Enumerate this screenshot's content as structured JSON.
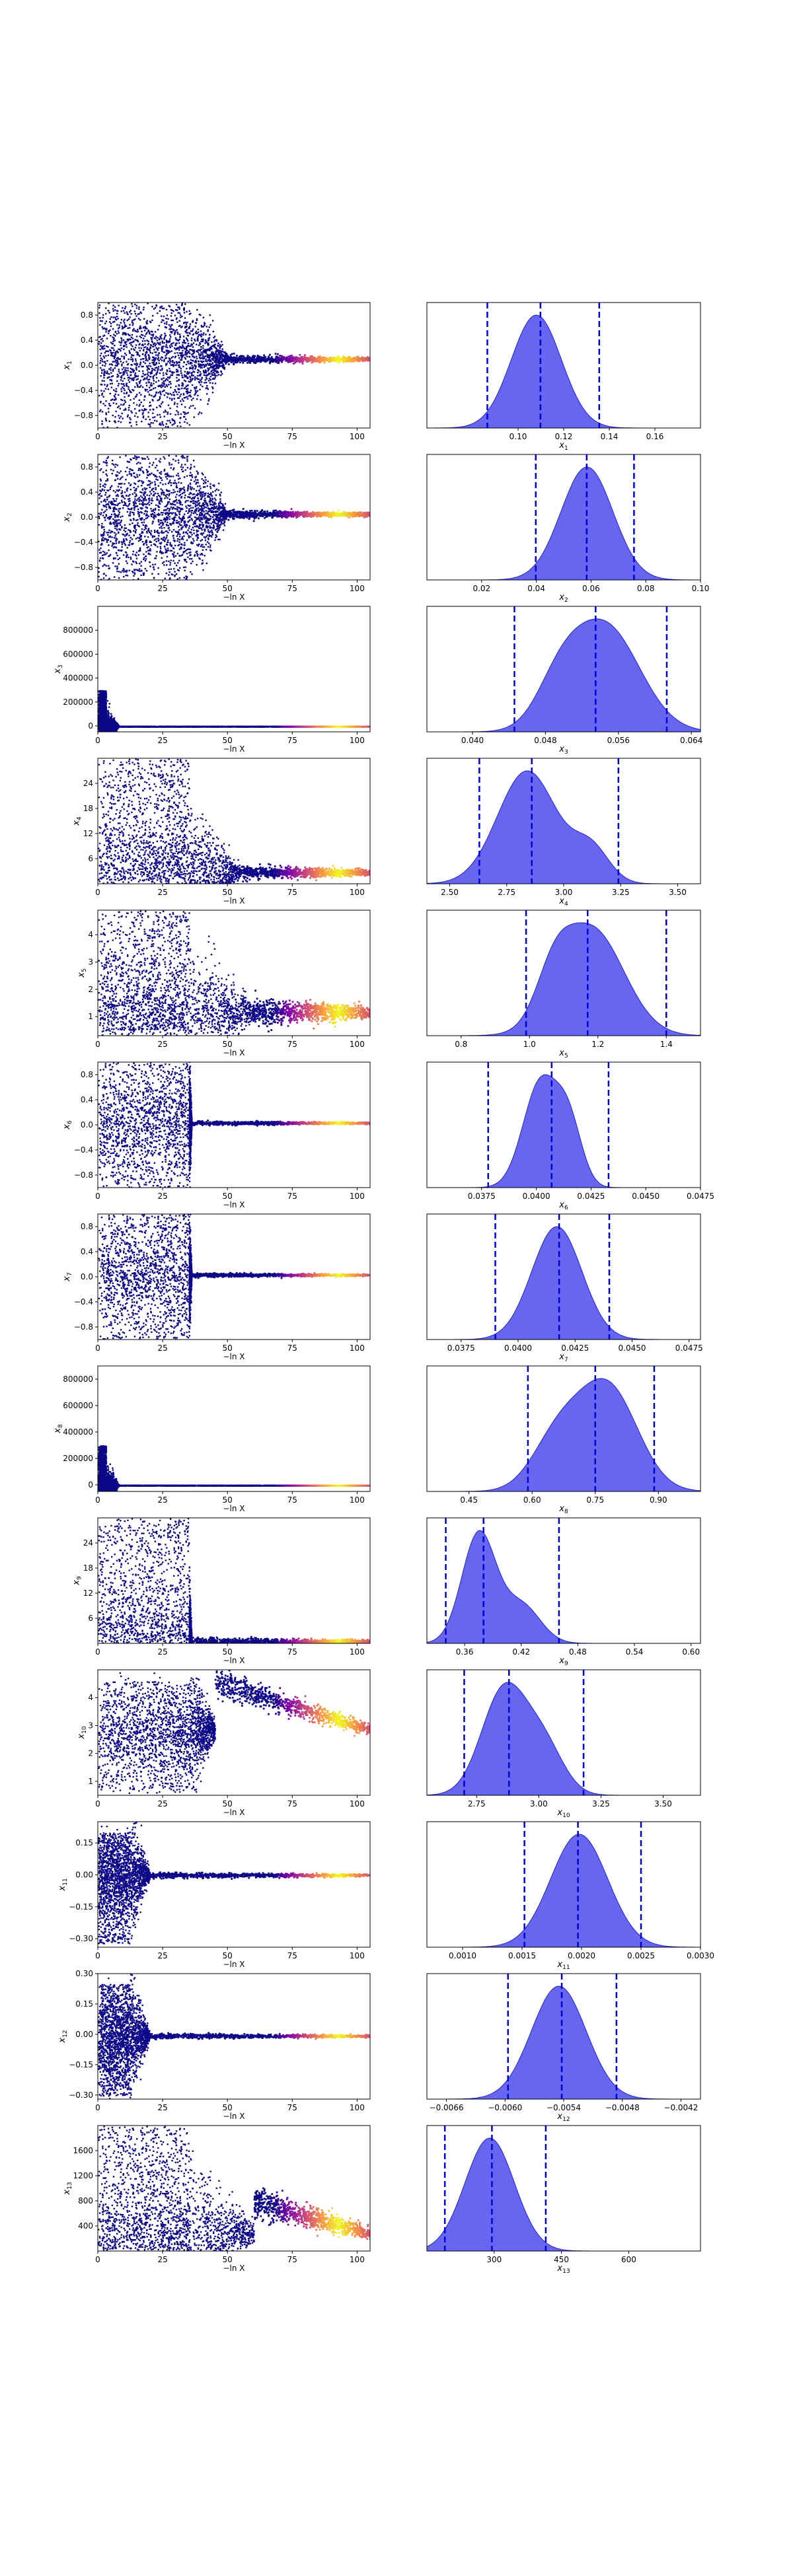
{
  "figure": {
    "trace_xlabel": "−ln X"
  },
  "colors": {
    "histogram_fill": "#5555ee",
    "histogram_edge": "#2222cc",
    "quantile_line": "#0000dd",
    "trace_low_weight": "#0d0887",
    "trace_high_weight": "#f0f921",
    "trace_mid_weight": "#cc4778"
  },
  "chart_data": [
    {
      "type": "scatter",
      "panel": "trace",
      "param": "x1",
      "xlabel": "−ln X",
      "ylabel": "x1",
      "xlim": [
        0,
        105
      ],
      "ylim": [
        -1.0,
        1.0
      ],
      "xticks": [
        0,
        25,
        50,
        75,
        100
      ],
      "yticks": [
        -0.8,
        -0.4,
        0.0,
        0.4,
        0.8
      ],
      "unconverged_until": 35,
      "unconverged_range": [
        -1.0,
        1.0
      ],
      "settle_until": 50,
      "converged_value": 0.11,
      "converged_spread": 0.02,
      "highlight_x": [
        85,
        100
      ]
    },
    {
      "type": "area",
      "panel": "posterior",
      "param": "x1",
      "xlabel": "x1",
      "xlim": [
        0.06,
        0.18
      ],
      "xticks": [
        0.1,
        0.12,
        0.14,
        0.16
      ],
      "quantiles": [
        0.0865,
        0.1098,
        0.1356
      ],
      "peaks": [
        [
          0.108,
          0.011,
          1.0
        ]
      ]
    },
    {
      "type": "scatter",
      "panel": "trace",
      "param": "x2",
      "xlabel": "−ln X",
      "ylabel": "x2",
      "xlim": [
        0,
        105
      ],
      "ylim": [
        -1.0,
        1.0
      ],
      "xticks": [
        0,
        25,
        50,
        75,
        100
      ],
      "yticks": [
        -0.8,
        -0.4,
        0.0,
        0.4,
        0.8
      ],
      "unconverged_until": 35,
      "unconverged_range": [
        -1.0,
        1.0
      ],
      "settle_until": 50,
      "converged_value": 0.06,
      "converged_spread": 0.02,
      "highlight_x": [
        85,
        100
      ]
    },
    {
      "type": "area",
      "panel": "posterior",
      "param": "x2",
      "xlabel": "x2",
      "xlim": [
        0.0,
        0.1
      ],
      "xticks": [
        0.02,
        0.04,
        0.06,
        0.08,
        0.1
      ],
      "quantiles": [
        0.0398,
        0.0584,
        0.0757
      ],
      "peaks": [
        [
          0.0585,
          0.0095,
          1.0
        ]
      ]
    },
    {
      "type": "scatter",
      "panel": "trace",
      "param": "x3",
      "xlabel": "−ln X",
      "ylabel": "x3",
      "xlim": [
        0,
        105
      ],
      "ylim": [
        -50000,
        1000000
      ],
      "xticks": [
        0,
        25,
        50,
        75,
        100
      ],
      "yticks": [
        0,
        200000,
        400000,
        600000,
        800000
      ],
      "unconverged_until": 3,
      "unconverged_range": [
        0,
        300000
      ],
      "settle_until": 8,
      "converged_value": 800,
      "converged_spread": 500,
      "highlight_x": [
        85,
        100
      ]
    },
    {
      "type": "area",
      "panel": "posterior",
      "param": "x3",
      "xlabel": "x3",
      "xlim": [
        0.035,
        0.065
      ],
      "xticks": [
        0.04,
        0.048,
        0.056,
        0.064
      ],
      "quantiles": [
        0.0446,
        0.0535,
        0.0613
      ],
      "peaks": [
        [
          0.0545,
          0.0038,
          1.0
        ],
        [
          0.0495,
          0.0025,
          0.35
        ]
      ]
    },
    {
      "type": "scatter",
      "panel": "trace",
      "param": "x4",
      "xlabel": "−ln X",
      "ylabel": "x4",
      "xlim": [
        0,
        105
      ],
      "ylim": [
        0,
        30
      ],
      "xticks": [
        0,
        25,
        50,
        75,
        100
      ],
      "yticks": [
        6,
        12,
        18,
        24
      ],
      "unconverged_until": 35,
      "unconverged_range": [
        1,
        30
      ],
      "settle_until": 55,
      "converged_value": 2.9,
      "converged_spread": 0.5,
      "highlight_x": [
        85,
        100
      ]
    },
    {
      "type": "area",
      "panel": "posterior",
      "param": "x4",
      "xlabel": "x4",
      "xlim": [
        2.4,
        3.6
      ],
      "xticks": [
        2.5,
        2.75,
        3.0,
        3.25,
        3.5
      ],
      "quantiles": [
        2.63,
        2.86,
        3.24
      ],
      "peaks": [
        [
          2.84,
          0.13,
          1.0
        ],
        [
          3.12,
          0.08,
          0.3
        ]
      ]
    },
    {
      "type": "scatter",
      "panel": "trace",
      "param": "x5",
      "xlabel": "−ln X",
      "ylabel": "x5",
      "xlim": [
        0,
        105
      ],
      "ylim": [
        0.3,
        4.9
      ],
      "xticks": [
        0,
        25,
        50,
        75,
        100
      ],
      "yticks": [
        1,
        2,
        3,
        4
      ],
      "unconverged_until": 35,
      "unconverged_range": [
        0.5,
        4.9
      ],
      "settle_until": 60,
      "converged_value": 1.2,
      "converged_spread": 0.15,
      "highlight_x": [
        85,
        100
      ]
    },
    {
      "type": "area",
      "panel": "posterior",
      "param": "x5",
      "xlabel": "x5",
      "xlim": [
        0.7,
        1.5
      ],
      "xticks": [
        0.8,
        1.0,
        1.2,
        1.4
      ],
      "quantiles": [
        0.99,
        1.17,
        1.4
      ],
      "peaks": [
        [
          1.18,
          0.095,
          1.0
        ],
        [
          1.07,
          0.05,
          0.35
        ]
      ]
    },
    {
      "type": "scatter",
      "panel": "trace",
      "param": "x6",
      "xlabel": "−ln X",
      "ylabel": "x6",
      "xlim": [
        0,
        105
      ],
      "ylim": [
        -1.0,
        1.0
      ],
      "xticks": [
        0,
        25,
        50,
        75,
        100
      ],
      "yticks": [
        -0.8,
        -0.4,
        0.0,
        0.4,
        0.8
      ],
      "unconverged_until": 35,
      "unconverged_range": [
        -1.0,
        1.0
      ],
      "settle_until": 36,
      "converged_value": 0.04,
      "converged_spread": 0.01,
      "highlight_x": [
        85,
        100
      ]
    },
    {
      "type": "area",
      "panel": "posterior",
      "param": "x6",
      "xlabel": "x6",
      "xlim": [
        0.035,
        0.0475
      ],
      "xticks": [
        0.0375,
        0.04,
        0.0425,
        0.045,
        0.0475
      ],
      "quantiles": [
        0.0378,
        0.0407,
        0.0433
      ],
      "peaks": [
        [
          0.0402,
          0.0008,
          1.0
        ],
        [
          0.0415,
          0.0006,
          0.55
        ]
      ]
    },
    {
      "type": "scatter",
      "panel": "trace",
      "param": "x7",
      "xlabel": "−ln X",
      "ylabel": "x7",
      "xlim": [
        0,
        105
      ],
      "ylim": [
        -1.0,
        1.0
      ],
      "xticks": [
        0,
        25,
        50,
        75,
        100
      ],
      "yticks": [
        -0.8,
        -0.4,
        0.0,
        0.4,
        0.8
      ],
      "unconverged_until": 35,
      "unconverged_range": [
        -1.0,
        1.0
      ],
      "settle_until": 36,
      "converged_value": 0.04,
      "converged_spread": 0.01,
      "highlight_x": [
        85,
        100
      ]
    },
    {
      "type": "area",
      "panel": "posterior",
      "param": "x7",
      "xlabel": "x7",
      "xlim": [
        0.036,
        0.048
      ],
      "xticks": [
        0.0375,
        0.04,
        0.0425,
        0.045,
        0.0475
      ],
      "quantiles": [
        0.039,
        0.0418,
        0.044
      ],
      "peaks": [
        [
          0.0417,
          0.0011,
          1.0
        ]
      ]
    },
    {
      "type": "scatter",
      "panel": "trace",
      "param": "x8",
      "xlabel": "−ln X",
      "ylabel": "x8",
      "xlim": [
        0,
        105
      ],
      "ylim": [
        -50000,
        900000
      ],
      "xticks": [
        0,
        25,
        50,
        75,
        100
      ],
      "yticks": [
        0,
        200000,
        400000,
        600000,
        800000
      ],
      "unconverged_until": 3,
      "unconverged_range": [
        0,
        300000
      ],
      "settle_until": 8,
      "converged_value": 800,
      "converged_spread": 500,
      "highlight_x": [
        85,
        100
      ]
    },
    {
      "type": "area",
      "panel": "posterior",
      "param": "x8",
      "xlabel": "x8",
      "xlim": [
        0.35,
        1.0
      ],
      "xticks": [
        0.45,
        0.6,
        0.75,
        0.9
      ],
      "quantiles": [
        0.59,
        0.75,
        0.89
      ],
      "peaks": [
        [
          0.78,
          0.07,
          1.0
        ],
        [
          0.66,
          0.06,
          0.5
        ]
      ]
    },
    {
      "type": "scatter",
      "panel": "trace",
      "param": "x9",
      "xlabel": "−ln X",
      "ylabel": "x9",
      "xlim": [
        0,
        105
      ],
      "ylim": [
        0,
        30
      ],
      "xticks": [
        0,
        25,
        50,
        75,
        100
      ],
      "yticks": [
        6,
        12,
        18,
        24
      ],
      "unconverged_until": 35,
      "unconverged_range": [
        0.5,
        30
      ],
      "settle_until": 36,
      "converged_value": 0.6,
      "converged_spread": 0.3,
      "highlight_x": [
        85,
        100
      ]
    },
    {
      "type": "area",
      "panel": "posterior",
      "param": "x9",
      "xlabel": "x9",
      "xlim": [
        0.32,
        0.61
      ],
      "xticks": [
        0.36,
        0.42,
        0.48,
        0.54,
        0.6
      ],
      "quantiles": [
        0.34,
        0.38,
        0.46
      ],
      "peaks": [
        [
          0.375,
          0.018,
          1.0
        ],
        [
          0.42,
          0.02,
          0.35
        ]
      ]
    },
    {
      "type": "scatter",
      "panel": "trace",
      "param": "x10",
      "xlabel": "−ln X",
      "ylabel": "x10",
      "xlim": [
        0,
        105
      ],
      "ylim": [
        0.5,
        5.0
      ],
      "xticks": [
        0,
        25,
        50,
        75,
        100
      ],
      "yticks": [
        1,
        2,
        3,
        4
      ],
      "unconverged_until": 35,
      "unconverged_range": [
        0.6,
        4.6
      ],
      "settle_until": 45,
      "converged_value": 2.85,
      "converged_spread": 0.15,
      "trend_from": 4.6,
      "highlight_x": [
        85,
        100
      ]
    },
    {
      "type": "area",
      "panel": "posterior",
      "param": "x10",
      "xlabel": "x10",
      "xlim": [
        2.55,
        3.65
      ],
      "xticks": [
        2.75,
        3.0,
        3.25,
        3.5
      ],
      "quantiles": [
        2.7,
        2.88,
        3.18
      ],
      "peaks": [
        [
          2.86,
          0.09,
          1.0
        ],
        [
          3.02,
          0.08,
          0.45
        ]
      ]
    },
    {
      "type": "scatter",
      "panel": "trace",
      "param": "x11",
      "xlabel": "−ln X",
      "ylabel": "x11",
      "xlim": [
        0,
        105
      ],
      "ylim": [
        -0.34,
        0.25
      ],
      "xticks": [
        0,
        25,
        50,
        75,
        100
      ],
      "yticks": [
        -0.3,
        -0.15,
        0.0,
        0.15
      ],
      "unconverged_until": 12,
      "unconverged_range": [
        -0.32,
        0.2
      ],
      "settle_until": 20,
      "converged_value": 0.002,
      "converged_spread": 0.004,
      "highlight_x": [
        85,
        100
      ]
    },
    {
      "type": "area",
      "panel": "posterior",
      "param": "x11",
      "xlabel": "x11",
      "xlim": [
        0.0007,
        0.003
      ],
      "xticks": [
        0.001,
        0.0015,
        0.002,
        0.0025,
        0.003
      ],
      "quantiles": [
        0.00152,
        0.00197,
        0.0025
      ],
      "peaks": [
        [
          0.00198,
          0.00024,
          1.0
        ]
      ]
    },
    {
      "type": "scatter",
      "panel": "trace",
      "param": "x12",
      "xlabel": "−ln X",
      "ylabel": "x12",
      "xlim": [
        0,
        105
      ],
      "ylim": [
        -0.32,
        0.3
      ],
      "xticks": [
        0,
        25,
        50,
        75,
        100
      ],
      "yticks": [
        -0.3,
        -0.15,
        0.0,
        0.15,
        0.3
      ],
      "unconverged_until": 12,
      "unconverged_range": [
        -0.3,
        0.25
      ],
      "settle_until": 20,
      "converged_value": -0.005,
      "converged_spread": 0.004,
      "highlight_x": [
        85,
        100
      ]
    },
    {
      "type": "area",
      "panel": "posterior",
      "param": "x12",
      "xlabel": "x12",
      "xlim": [
        -0.0068,
        -0.004
      ],
      "xticks": [
        -0.0066,
        -0.006,
        -0.0054,
        -0.0048,
        -0.0042
      ],
      "quantiles": [
        -0.00597,
        -0.00542,
        -0.00486
      ],
      "peaks": [
        [
          -0.00545,
          0.00028,
          1.0
        ]
      ]
    },
    {
      "type": "scatter",
      "panel": "trace",
      "param": "x13",
      "xlabel": "−ln X",
      "ylabel": "x13",
      "xlim": [
        0,
        105
      ],
      "ylim": [
        0,
        2000
      ],
      "xticks": [
        0,
        25,
        50,
        75,
        100
      ],
      "yticks": [
        400,
        800,
        1200,
        1600
      ],
      "unconverged_until": 35,
      "unconverged_range": [
        50,
        2000
      ],
      "settle_until": 60,
      "converged_value": 280,
      "converged_spread": 70,
      "trend_from": 800,
      "highlight_x": [
        85,
        100
      ]
    },
    {
      "type": "area",
      "panel": "posterior",
      "param": "x13",
      "xlabel": "x13",
      "xlim": [
        150,
        760
      ],
      "xticks": [
        300,
        450,
        600
      ],
      "quantiles": [
        190,
        295,
        415
      ],
      "peaks": [
        [
          290,
          55,
          1.0
        ]
      ]
    }
  ]
}
